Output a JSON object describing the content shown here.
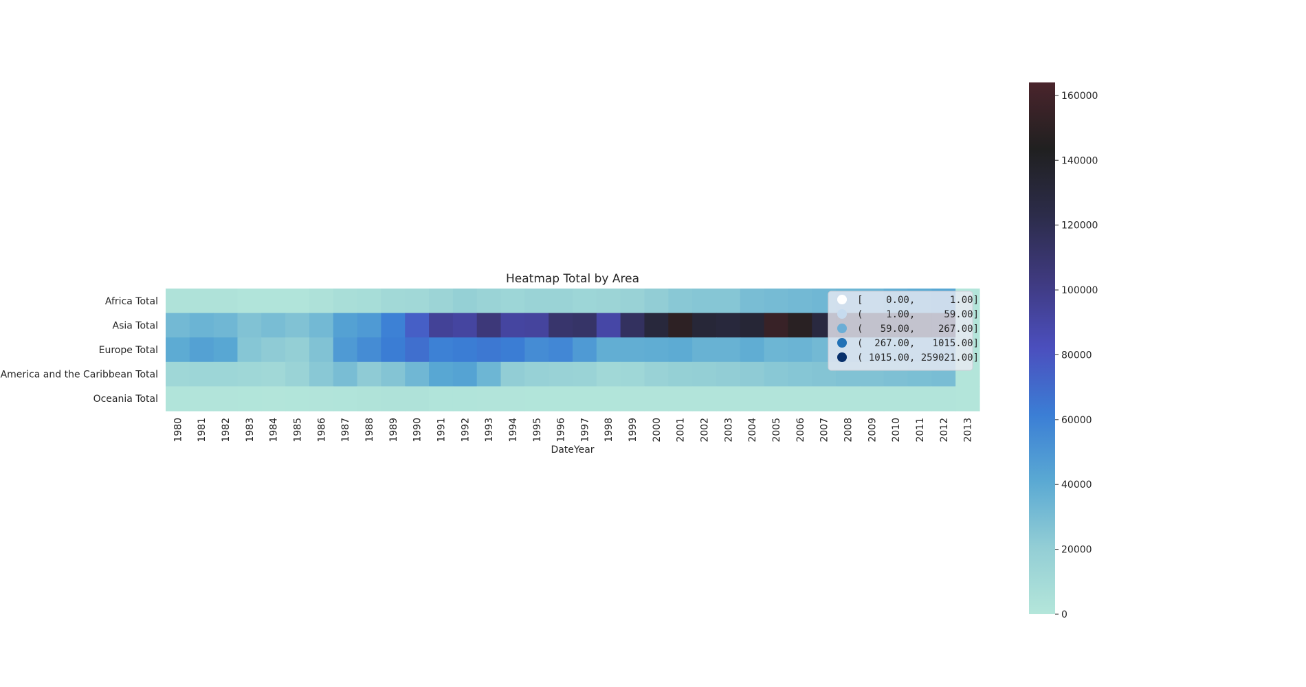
{
  "chart_data": {
    "type": "heatmap",
    "title": "Heatmap Total by Area",
    "xlabel": "DateYear",
    "ylabel": "",
    "x": [
      "1980",
      "1981",
      "1982",
      "1983",
      "1984",
      "1985",
      "1986",
      "1987",
      "1988",
      "1989",
      "1990",
      "1991",
      "1992",
      "1993",
      "1994",
      "1995",
      "1996",
      "1997",
      "1998",
      "1999",
      "2000",
      "2001",
      "2002",
      "2003",
      "2004",
      "2005",
      "2006",
      "2007",
      "2008",
      "2009",
      "2010",
      "2011",
      "2012",
      "2013"
    ],
    "y": [
      "Africa Total",
      "Asia Total",
      "Europe Total",
      "America and the Caribbean Total",
      "Oceania Total"
    ],
    "values": [
      [
        3000,
        3000,
        3000,
        2000,
        2000,
        2000,
        4000,
        7000,
        8000,
        11000,
        12000,
        15000,
        19000,
        16000,
        14000,
        16000,
        16000,
        14000,
        15000,
        17000,
        21000,
        24000,
        25000,
        25000,
        30000,
        31000,
        32000,
        33000,
        34000,
        35000,
        38000,
        40000,
        42000,
        500
      ],
      [
        32000,
        35000,
        33000,
        27000,
        30000,
        27000,
        32000,
        45000,
        48000,
        60000,
        75000,
        95000,
        92000,
        105000,
        92000,
        93000,
        110000,
        112000,
        90000,
        115000,
        130000,
        150000,
        132000,
        130000,
        133000,
        155000,
        148000,
        128000,
        130000,
        131000,
        129000,
        129000,
        128000,
        500
      ],
      [
        40000,
        45000,
        42000,
        25000,
        22000,
        20000,
        27000,
        48000,
        55000,
        62000,
        68000,
        60000,
        62000,
        64000,
        62000,
        55000,
        57000,
        48000,
        38000,
        38000,
        39000,
        40000,
        36000,
        36000,
        39000,
        34000,
        35000,
        32000,
        32000,
        33000,
        33000,
        34000,
        34000,
        500
      ],
      [
        13000,
        14000,
        14000,
        13000,
        12000,
        16000,
        24000,
        30000,
        22000,
        26000,
        33000,
        42000,
        44000,
        34000,
        21000,
        18000,
        17000,
        16000,
        12000,
        13000,
        17000,
        19000,
        20000,
        21000,
        22000,
        24000,
        25000,
        26000,
        27000,
        27000,
        28000,
        29000,
        30000,
        500
      ],
      [
        2000,
        1500,
        1500,
        1000,
        500,
        1000,
        1500,
        2000,
        2500,
        3000,
        3000,
        2000,
        2000,
        1500,
        1500,
        1000,
        1000,
        1000,
        1000,
        1500,
        1500,
        1500,
        1500,
        1500,
        1500,
        1500,
        1500,
        1500,
        1500,
        1500,
        1500,
        1500,
        1500,
        500
      ]
    ],
    "vmin": 0,
    "vmax": 164000,
    "colormap": [
      "#b4e6da",
      "#93ced5",
      "#5aa9d3",
      "#3b7ed5",
      "#4b4fbe",
      "#3f3a80",
      "#2c2c4a",
      "#202020",
      "#4a242c"
    ],
    "colorbar_ticks": [
      0,
      20000,
      40000,
      60000,
      80000,
      100000,
      120000,
      140000,
      160000
    ],
    "grid": false,
    "legend": {
      "placement": "top-right",
      "entries": [
        {
          "label": "[    0.00,      1.00]",
          "color": "#ffffff"
        },
        {
          "label": "(    1.00,     59.00]",
          "color": "#c6dbef"
        },
        {
          "label": "(   59.00,    267.00]",
          "color": "#6baed6"
        },
        {
          "label": "(  267.00,   1015.00]",
          "color": "#2171b5"
        },
        {
          "label": "( 1015.00, 259021.00]",
          "color": "#08306b"
        }
      ]
    }
  }
}
